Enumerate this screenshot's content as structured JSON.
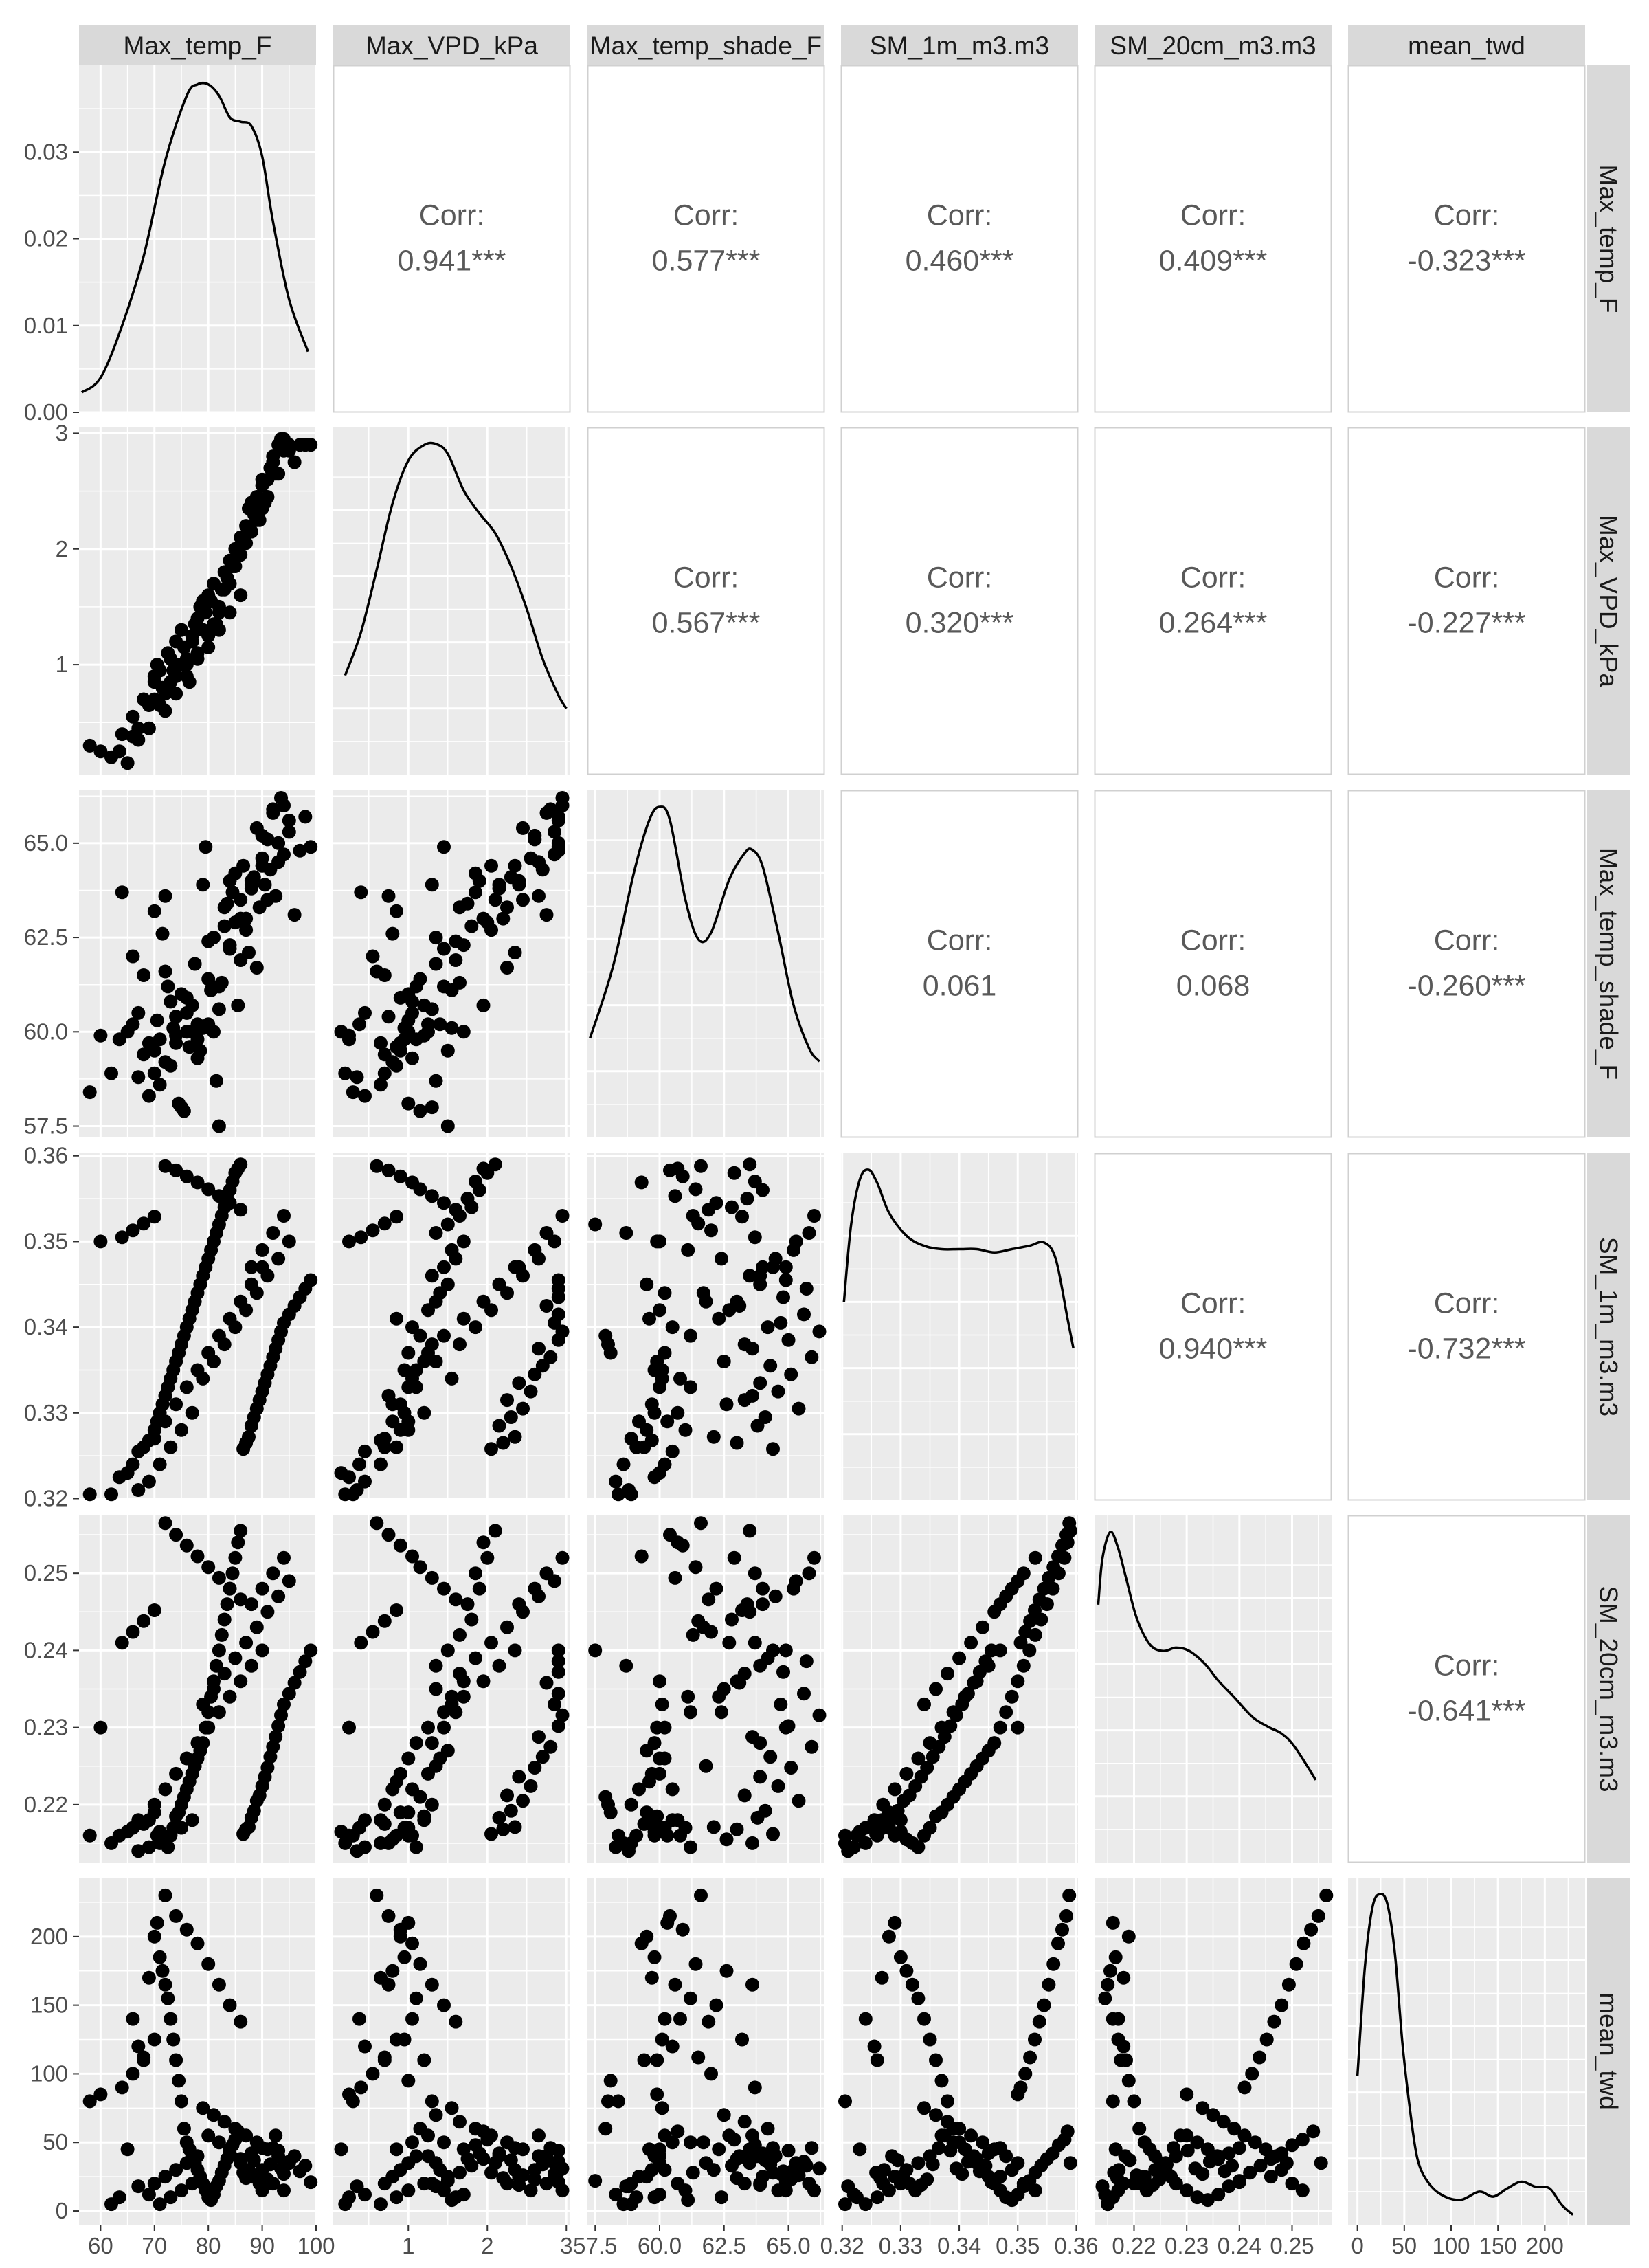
{
  "chart_data": {
    "type": "scatter",
    "title": "",
    "variables": [
      {
        "name": "Max_temp_F",
        "range": [
          56,
          100
        ],
        "ticks": [
          60,
          70,
          80,
          90,
          100
        ],
        "tick_labels": [
          "60",
          "70",
          "80",
          "90",
          "100"
        ],
        "density_range": [
          0,
          0.04
        ],
        "density_ticks": [
          0.0,
          0.01,
          0.02,
          0.03
        ],
        "density_tick_labels": [
          "0.00",
          "0.01",
          "0.02",
          "0.03"
        ]
      },
      {
        "name": "Max_VPD_kPa",
        "range": [
          0.05,
          3.05
        ],
        "ticks": [
          1,
          2,
          3
        ],
        "tick_labels": [
          "1",
          "2",
          "3"
        ]
      },
      {
        "name": "Max_temp_shade_F",
        "range": [
          57.2,
          66.4
        ],
        "ticks": [
          57.5,
          60.0,
          62.5,
          65.0
        ],
        "tick_labels": [
          "57.5",
          "60.0",
          "62.5",
          "65.0"
        ]
      },
      {
        "name": "SM_1m_m3.m3",
        "range": [
          0.3198,
          0.3603
        ],
        "ticks": [
          0.32,
          0.33,
          0.34,
          0.35,
          0.36
        ],
        "tick_labels": [
          "0.32",
          "0.33",
          "0.34",
          "0.35",
          "0.36"
        ]
      },
      {
        "name": "SM_20cm_m3.m3",
        "range": [
          0.2125,
          0.2575
        ],
        "ticks": [
          0.22,
          0.23,
          0.24,
          0.25
        ],
        "tick_labels": [
          "0.22",
          "0.23",
          "0.24",
          "0.25"
        ],
        "y_tick_labels": [
          "0.22",
          "0.23",
          "0.24",
          "0.25"
        ],
        "x_tick_labels": [
          "0.22",
          "0.23",
          "0.24",
          "0.25"
        ]
      },
      {
        "name": "mean_twd",
        "range": [
          -10,
          243
        ],
        "ticks": [
          0,
          50,
          100,
          150,
          200
        ],
        "tick_labels": [
          "0",
          "50",
          "100",
          "150",
          "200"
        ]
      }
    ],
    "correlations": [
      {
        "row": 0,
        "col": 1,
        "label": "Corr:",
        "value": "0.941***"
      },
      {
        "row": 0,
        "col": 2,
        "label": "Corr:",
        "value": "0.577***"
      },
      {
        "row": 0,
        "col": 3,
        "label": "Corr:",
        "value": "0.460***"
      },
      {
        "row": 0,
        "col": 4,
        "label": "Corr:",
        "value": "0.409***"
      },
      {
        "row": 0,
        "col": 5,
        "label": "Corr:",
        "value": "-0.323***"
      },
      {
        "row": 1,
        "col": 2,
        "label": "Corr:",
        "value": "0.567***"
      },
      {
        "row": 1,
        "col": 3,
        "label": "Corr:",
        "value": "0.320***"
      },
      {
        "row": 1,
        "col": 4,
        "label": "Corr:",
        "value": "0.264***"
      },
      {
        "row": 1,
        "col": 5,
        "label": "Corr:",
        "value": "-0.227***"
      },
      {
        "row": 2,
        "col": 3,
        "label": "Corr:",
        "value": "0.061"
      },
      {
        "row": 2,
        "col": 4,
        "label": "Corr:",
        "value": "0.068"
      },
      {
        "row": 2,
        "col": 5,
        "label": "Corr:",
        "value": "-0.260***"
      },
      {
        "row": 3,
        "col": 4,
        "label": "Corr:",
        "value": "0.940***"
      },
      {
        "row": 3,
        "col": 5,
        "label": "Corr:",
        "value": "-0.732***"
      },
      {
        "row": 4,
        "col": 5,
        "label": "Corr:",
        "value": "-0.641***"
      }
    ],
    "densities": [
      {
        "var": 0,
        "x": [
          56.5,
          60,
          64,
          68,
          72,
          76,
          78,
          80,
          82,
          84,
          86,
          88,
          90,
          92,
          95,
          98.5
        ],
        "y": [
          0.0023,
          0.004,
          0.01,
          0.018,
          0.029,
          0.0365,
          0.0378,
          0.0378,
          0.0365,
          0.034,
          0.0335,
          0.033,
          0.0295,
          0.022,
          0.013,
          0.007
        ]
      },
      {
        "var": 1,
        "x": [
          0.2,
          0.4,
          0.6,
          0.8,
          1.0,
          1.2,
          1.35,
          1.5,
          1.7,
          1.9,
          2.1,
          2.3,
          2.5,
          2.7,
          2.9,
          3.0
        ],
        "y": [
          0.3,
          0.43,
          0.62,
          0.82,
          0.95,
          0.997,
          1.0,
          0.97,
          0.86,
          0.79,
          0.73,
          0.63,
          0.5,
          0.35,
          0.24,
          0.2
        ]
      },
      {
        "var": 2,
        "x": [
          57.3,
          58.2,
          59.0,
          59.6,
          60.0,
          60.4,
          61.0,
          61.5,
          62.0,
          62.7,
          63.3,
          63.6,
          64.0,
          64.6,
          65.2,
          65.8,
          66.2
        ],
        "y": [
          0.3,
          0.52,
          0.8,
          0.96,
          1.0,
          0.96,
          0.72,
          0.6,
          0.62,
          0.78,
          0.86,
          0.87,
          0.82,
          0.62,
          0.4,
          0.27,
          0.23
        ]
      },
      {
        "var": 3,
        "x": [
          0.3203,
          0.3215,
          0.323,
          0.3245,
          0.326,
          0.328,
          0.331,
          0.334,
          0.337,
          0.34,
          0.343,
          0.346,
          0.349,
          0.352,
          0.3545,
          0.3565,
          0.3585,
          0.3595
        ],
        "y": [
          0.6,
          0.83,
          0.97,
          1.0,
          0.96,
          0.87,
          0.8,
          0.77,
          0.76,
          0.76,
          0.76,
          0.75,
          0.76,
          0.77,
          0.78,
          0.73,
          0.55,
          0.46
        ]
      },
      {
        "var": 4,
        "x": [
          0.2132,
          0.214,
          0.2155,
          0.217,
          0.2185,
          0.2205,
          0.223,
          0.2255,
          0.228,
          0.2305,
          0.2335,
          0.236,
          0.239,
          0.2425,
          0.2455,
          0.248,
          0.2505,
          0.2545
        ],
        "y": [
          0.78,
          0.92,
          1.0,
          0.95,
          0.86,
          0.74,
          0.66,
          0.64,
          0.65,
          0.64,
          0.6,
          0.55,
          0.5,
          0.44,
          0.41,
          0.39,
          0.35,
          0.25
        ]
      },
      {
        "var": 5,
        "x": [
          0,
          8,
          16,
          24,
          32,
          40,
          48,
          56,
          64,
          75,
          90,
          110,
          130,
          145,
          160,
          175,
          190,
          205,
          218,
          230
        ],
        "y": [
          0.45,
          0.78,
          0.96,
          1.0,
          0.97,
          0.82,
          0.55,
          0.35,
          0.2,
          0.13,
          0.09,
          0.075,
          0.1,
          0.085,
          0.11,
          0.13,
          0.115,
          0.11,
          0.06,
          0.03
        ]
      }
    ],
    "observations": [
      [
        58.0,
        0.3,
        58.4,
        0.3205,
        0.216,
        80
      ],
      [
        62.0,
        0.2,
        58.9,
        0.3205,
        0.215,
        5
      ],
      [
        63.5,
        0.25,
        59.8,
        0.3225,
        0.216,
        10
      ],
      [
        65.0,
        0.15,
        60.0,
        0.323,
        0.2165,
        45
      ],
      [
        66.0,
        0.38,
        60.2,
        0.324,
        0.217,
        140
      ],
      [
        67.0,
        0.45,
        60.5,
        0.3255,
        0.218,
        120
      ],
      [
        68.0,
        0.7,
        59.4,
        0.326,
        0.2175,
        110
      ],
      [
        69.0,
        0.65,
        59.7,
        0.3268,
        0.218,
        170
      ],
      [
        70.0,
        0.9,
        59.5,
        0.328,
        0.219,
        200
      ],
      [
        70.5,
        1.0,
        60.3,
        0.329,
        0.216,
        210
      ],
      [
        71.0,
        0.95,
        59.8,
        0.33,
        0.2165,
        185
      ],
      [
        71.5,
        0.8,
        62.6,
        0.331,
        0.2155,
        175
      ],
      [
        72.0,
        0.75,
        63.6,
        0.332,
        0.215,
        165
      ],
      [
        72.5,
        1.1,
        61.2,
        0.333,
        0.2145,
        155
      ],
      [
        73.0,
        1.05,
        60.8,
        0.334,
        0.216,
        140
      ],
      [
        73.5,
        0.95,
        60.1,
        0.335,
        0.217,
        125
      ],
      [
        74.0,
        1.2,
        59.9,
        0.336,
        0.2185,
        110
      ],
      [
        74.5,
        1.0,
        58.1,
        0.337,
        0.219,
        95
      ],
      [
        75.0,
        1.3,
        58.0,
        0.338,
        0.22,
        80
      ],
      [
        75.5,
        1.15,
        57.9,
        0.339,
        0.221,
        60
      ],
      [
        76.0,
        1.05,
        60.5,
        0.34,
        0.222,
        50
      ],
      [
        76.5,
        0.85,
        59.6,
        0.341,
        0.223,
        45
      ],
      [
        77.0,
        1.25,
        60.0,
        0.342,
        0.224,
        40
      ],
      [
        77.5,
        1.35,
        61.8,
        0.343,
        0.225,
        35
      ],
      [
        78.0,
        1.4,
        60.2,
        0.344,
        0.226,
        30
      ],
      [
        78.5,
        1.5,
        59.5,
        0.345,
        0.227,
        25
      ],
      [
        79.0,
        1.3,
        63.9,
        0.346,
        0.228,
        20
      ],
      [
        79.5,
        1.45,
        64.9,
        0.347,
        0.23,
        15
      ],
      [
        80.0,
        1.6,
        62.4,
        0.348,
        0.232,
        10
      ],
      [
        80.5,
        1.55,
        61.1,
        0.349,
        0.234,
        8
      ],
      [
        81.0,
        1.7,
        60.0,
        0.35,
        0.236,
        12
      ],
      [
        81.5,
        1.35,
        58.7,
        0.351,
        0.238,
        18
      ],
      [
        82.0,
        1.5,
        57.5,
        0.352,
        0.24,
        22
      ],
      [
        82.5,
        1.65,
        61.3,
        0.353,
        0.242,
        28
      ],
      [
        83.0,
        1.8,
        62.8,
        0.354,
        0.244,
        33
      ],
      [
        83.5,
        1.75,
        63.4,
        0.355,
        0.246,
        38
      ],
      [
        84.0,
        1.9,
        64.0,
        0.356,
        0.248,
        42
      ],
      [
        84.5,
        1.85,
        63.7,
        0.357,
        0.25,
        48
      ],
      [
        85.0,
        2.0,
        62.9,
        0.358,
        0.252,
        52
      ],
      [
        85.5,
        1.95,
        60.7,
        0.3585,
        0.254,
        58
      ],
      [
        86.0,
        2.1,
        63.5,
        0.359,
        0.2555,
        35
      ],
      [
        86.5,
        2.05,
        64.4,
        0.3258,
        0.2162,
        28
      ],
      [
        87.0,
        2.2,
        63.0,
        0.3265,
        0.2168,
        24
      ],
      [
        87.5,
        2.35,
        62.1,
        0.3272,
        0.2171,
        30
      ],
      [
        88.0,
        2.15,
        63.8,
        0.3285,
        0.2183,
        40
      ],
      [
        88.5,
        2.3,
        64.1,
        0.3295,
        0.2192,
        37
      ],
      [
        89.0,
        2.45,
        65.4,
        0.3305,
        0.2205,
        26
      ],
      [
        89.5,
        2.25,
        63.3,
        0.3315,
        0.2212,
        20
      ],
      [
        90.0,
        2.55,
        64.6,
        0.3325,
        0.2224,
        15
      ],
      [
        90.5,
        2.4,
        63.9,
        0.3335,
        0.2236,
        19
      ],
      [
        91.0,
        2.6,
        65.1,
        0.3345,
        0.2248,
        23
      ],
      [
        91.5,
        2.7,
        64.3,
        0.3355,
        0.2262,
        34
      ],
      [
        92.0,
        2.8,
        65.9,
        0.3365,
        0.2275,
        46
      ],
      [
        92.5,
        2.65,
        63.6,
        0.3375,
        0.2288,
        55
      ],
      [
        93.0,
        2.9,
        65.0,
        0.3385,
        0.2302,
        44
      ],
      [
        93.5,
        2.95,
        66.2,
        0.3395,
        0.2316,
        31
      ],
      [
        94.0,
        2.85,
        64.7,
        0.3405,
        0.233,
        27
      ],
      [
        95.0,
        2.9,
        65.6,
        0.3415,
        0.2344,
        36
      ],
      [
        96.0,
        2.75,
        63.1,
        0.3425,
        0.2358,
        40
      ],
      [
        97.0,
        2.9,
        64.8,
        0.3435,
        0.2372,
        29
      ],
      [
        98.0,
        2.9,
        65.7,
        0.3445,
        0.2386,
        33
      ],
      [
        99.0,
        2.9,
        64.9,
        0.3455,
        0.24,
        21
      ],
      [
        72.0,
        0.6,
        61.6,
        0.3588,
        0.2565,
        230
      ],
      [
        74.0,
        0.75,
        60.4,
        0.3583,
        0.255,
        215
      ],
      [
        76.0,
        0.9,
        60.9,
        0.3576,
        0.2536,
        205
      ],
      [
        78.0,
        1.05,
        59.3,
        0.3569,
        0.2522,
        195
      ],
      [
        80.0,
        1.15,
        61.4,
        0.3561,
        0.2508,
        180
      ],
      [
        82.0,
        1.3,
        60.6,
        0.3553,
        0.2494,
        165
      ],
      [
        84.0,
        1.45,
        62.2,
        0.3545,
        0.248,
        150
      ],
      [
        86.0,
        1.6,
        61.9,
        0.3537,
        0.2466,
        138
      ],
      [
        70.0,
        0.85,
        63.2,
        0.3529,
        0.2452,
        125
      ],
      [
        68.0,
        0.7,
        61.5,
        0.3521,
        0.2438,
        112
      ],
      [
        66.0,
        0.55,
        62.0,
        0.3513,
        0.2424,
        100
      ],
      [
        64.0,
        0.4,
        63.7,
        0.3505,
        0.241,
        90
      ],
      [
        60.0,
        0.25,
        59.9,
        0.35,
        0.23,
        85
      ],
      [
        79.0,
        1.55,
        60.1,
        0.334,
        0.233,
        75
      ],
      [
        81.0,
        1.35,
        62.5,
        0.336,
        0.235,
        70
      ],
      [
        83.0,
        1.65,
        63.3,
        0.338,
        0.237,
        65
      ],
      [
        85.0,
        1.85,
        64.2,
        0.34,
        0.239,
        60
      ],
      [
        87.0,
        2.05,
        62.7,
        0.342,
        0.241,
        55
      ],
      [
        89.0,
        2.25,
        61.7,
        0.344,
        0.243,
        50
      ],
      [
        91.0,
        2.45,
        63.5,
        0.346,
        0.245,
        45
      ],
      [
        93.0,
        2.65,
        64.5,
        0.348,
        0.247,
        40
      ],
      [
        95.0,
        2.85,
        65.3,
        0.35,
        0.249,
        35
      ],
      [
        77.0,
        1.2,
        60.7,
        0.33,
        0.218,
        20
      ],
      [
        75.0,
        1.0,
        61.0,
        0.328,
        0.217,
        15
      ],
      [
        73.0,
        0.85,
        59.1,
        0.326,
        0.216,
        10
      ],
      [
        71.0,
        0.65,
        58.6,
        0.324,
        0.215,
        5
      ],
      [
        69.0,
        0.45,
        58.3,
        0.322,
        0.2145,
        12
      ],
      [
        67.0,
        0.35,
        58.8,
        0.321,
        0.214,
        18
      ],
      [
        88.0,
        2.4,
        64.0,
        0.347,
        0.246,
        25
      ],
      [
        90.0,
        2.6,
        65.2,
        0.349,
        0.248,
        30
      ],
      [
        92.0,
        2.75,
        65.8,
        0.351,
        0.25,
        20
      ],
      [
        94.0,
        2.95,
        66.0,
        0.353,
        0.252,
        15
      ],
      [
        84.0,
        1.7,
        62.3,
        0.341,
        0.234,
        45
      ],
      [
        82.0,
        1.45,
        61.2,
        0.339,
        0.232,
        50
      ],
      [
        80.0,
        1.25,
        60.2,
        0.337,
        0.23,
        55
      ],
      [
        78.0,
        1.1,
        59.8,
        0.335,
        0.228,
        40
      ],
      [
        76.0,
        1.0,
        60.0,
        0.333,
        0.226,
        35
      ],
      [
        74.0,
        0.9,
        59.7,
        0.331,
        0.224,
        30
      ],
      [
        72.0,
        0.8,
        59.2,
        0.329,
        0.222,
        25
      ],
      [
        70.0,
        0.7,
        58.9,
        0.327,
        0.22,
        20
      ],
      [
        86.0,
        1.95,
        63.0,
        0.343,
        0.236,
        38
      ],
      [
        88.0,
        2.15,
        63.9,
        0.345,
        0.238,
        42
      ],
      [
        90.0,
        2.35,
        64.4,
        0.347,
        0.24,
        46
      ]
    ]
  }
}
